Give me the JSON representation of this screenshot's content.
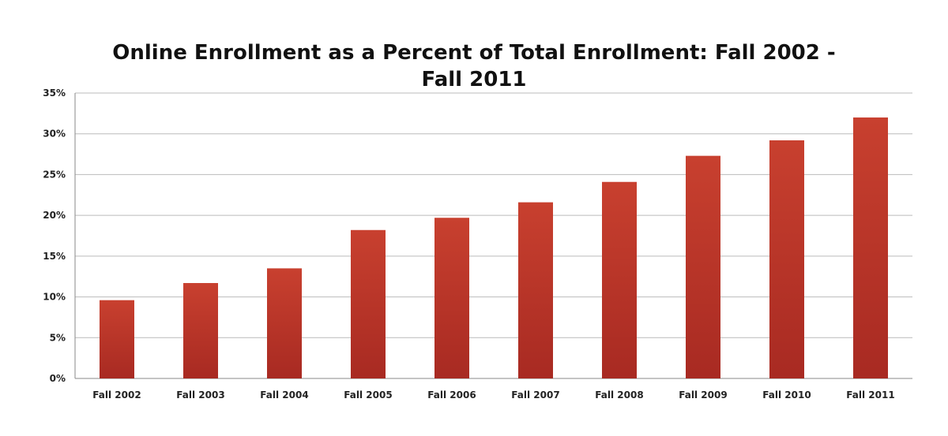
{
  "chart_data": {
    "type": "bar",
    "title_line1": "Online Enrollment as a Percent of Total Enrollment: Fall 2002 -",
    "title_line2": "Fall 2011",
    "xlabel": "",
    "ylabel": "",
    "categories": [
      "Fall 2002",
      "Fall 2003",
      "Fall 2004",
      "Fall 2005",
      "Fall 2006",
      "Fall 2007",
      "Fall 2008",
      "Fall 2009",
      "Fall 2010",
      "Fall 2011"
    ],
    "values": [
      9.6,
      11.7,
      13.5,
      18.2,
      19.7,
      21.6,
      24.1,
      27.3,
      29.2,
      32.0
    ],
    "ylim": [
      0,
      35
    ],
    "yticks": [
      0,
      5,
      10,
      15,
      20,
      25,
      30,
      35
    ],
    "ytick_labels": [
      "0%",
      "5%",
      "10%",
      "15%",
      "20%",
      "25%",
      "30%",
      "35%"
    ],
    "grid": true,
    "bar_color": "#c0392b"
  }
}
